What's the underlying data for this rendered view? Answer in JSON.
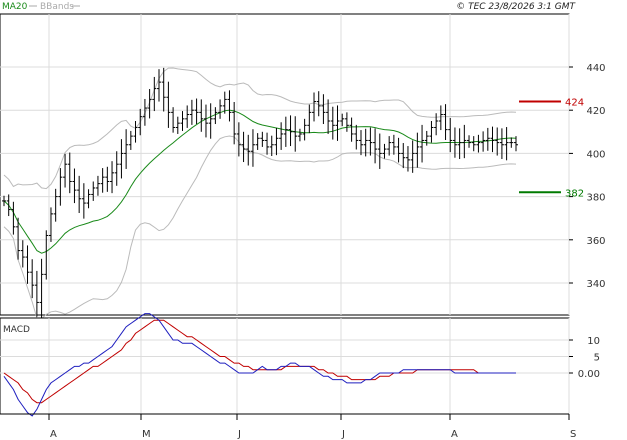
{
  "header": {
    "legend_ma": "MA20",
    "legend_bb": "BBands",
    "copyright": "© TEC 23/8/2026 3:1 GMT"
  },
  "colors": {
    "bars": "#000000",
    "ma": "#1a8a1a",
    "bbands": "#bbbbbb",
    "resistance": "#c00000",
    "support": "#007a00",
    "macd": "#1f1fbf",
    "signal": "#c00000",
    "grid": "#dcdcdc"
  },
  "chart_data": [
    {
      "type": "ohlc",
      "name": "price-panel",
      "ylim": [
        325,
        450
      ],
      "yticks": [
        340,
        360,
        380,
        400,
        420,
        440
      ],
      "xticks": [
        "A",
        "M",
        "J",
        "J",
        "A",
        "S"
      ],
      "grid": true,
      "legend": "top-left",
      "levels": [
        {
          "label": "424",
          "value": 424,
          "kind": "resistance"
        },
        {
          "label": "382",
          "value": 382,
          "kind": "support"
        }
      ],
      "close": [
        378,
        374,
        366,
        355,
        352,
        345,
        339,
        331,
        344,
        362,
        372,
        380,
        389,
        395,
        387,
        383,
        379,
        377,
        381,
        384,
        386,
        389,
        387,
        391,
        395,
        400,
        404,
        408,
        412,
        417,
        421,
        425,
        430,
        433,
        426,
        419,
        412,
        414,
        416,
        418,
        420,
        419,
        416,
        414,
        416,
        419,
        422,
        425,
        419,
        409,
        404,
        402,
        401,
        404,
        407,
        406,
        403,
        404,
        407,
        409,
        411,
        410,
        408,
        409,
        413,
        419,
        424,
        422,
        419,
        415,
        413,
        415,
        416,
        413,
        409,
        406,
        404,
        406,
        405,
        402,
        400,
        402,
        405,
        403,
        400,
        398,
        397,
        400,
        403,
        406,
        408,
        412,
        415,
        418,
        411,
        406,
        404,
        405,
        406,
        405,
        404,
        405,
        406,
        407,
        406,
        405,
        404,
        405,
        405,
        404
      ]
    },
    {
      "type": "line",
      "name": "macd-panel",
      "title": "MACD",
      "ylim": [
        -12,
        20
      ],
      "yticks": [
        "0.00",
        "5",
        "10"
      ],
      "grid": true,
      "series": [
        {
          "name": "MACD",
          "values": [
            -1,
            -3,
            -5,
            -8,
            -10,
            -12,
            -13,
            -11,
            -8,
            -5,
            -3,
            -2,
            -1,
            0,
            1,
            2,
            2,
            3,
            3,
            4,
            5,
            6,
            7,
            8,
            10,
            12,
            14,
            15,
            16,
            17,
            18,
            18,
            17,
            16,
            14,
            12,
            10,
            10,
            9,
            9,
            9,
            8,
            7,
            6,
            5,
            4,
            3,
            3,
            2,
            1,
            0,
            0,
            0,
            0,
            1,
            2,
            1,
            1,
            1,
            2,
            2,
            3,
            3,
            2,
            2,
            2,
            1,
            0,
            -1,
            -1,
            -2,
            -2,
            -2,
            -3,
            -3,
            -3,
            -3,
            -2,
            -2,
            -1,
            0,
            0,
            0,
            0,
            0,
            1,
            1,
            1,
            1,
            1,
            1,
            1,
            1,
            1,
            1,
            1,
            0,
            0,
            0,
            0,
            0,
            0,
            0,
            0,
            0,
            0,
            0,
            0,
            0,
            0
          ]
        },
        {
          "name": "Signal",
          "values": [
            0,
            -1,
            -2,
            -3,
            -5,
            -6,
            -8,
            -9,
            -9,
            -8,
            -7,
            -6,
            -5,
            -4,
            -3,
            -2,
            -1,
            0,
            1,
            2,
            2,
            3,
            4,
            5,
            6,
            7,
            9,
            10,
            12,
            13,
            14,
            15,
            16,
            16,
            16,
            15,
            14,
            13,
            12,
            11,
            11,
            10,
            9,
            8,
            7,
            6,
            5,
            5,
            4,
            3,
            3,
            2,
            2,
            1,
            1,
            1,
            1,
            1,
            1,
            1,
            2,
            2,
            2,
            2,
            2,
            2,
            2,
            1,
            1,
            0,
            0,
            -1,
            -1,
            -1,
            -2,
            -2,
            -2,
            -2,
            -2,
            -2,
            -1,
            -1,
            -1,
            0,
            0,
            0,
            0,
            0,
            1,
            1,
            1,
            1,
            1,
            1,
            1,
            1,
            1,
            1,
            1,
            1,
            1,
            0,
            0,
            0,
            0,
            0,
            0,
            0,
            0,
            0
          ]
        }
      ]
    }
  ]
}
